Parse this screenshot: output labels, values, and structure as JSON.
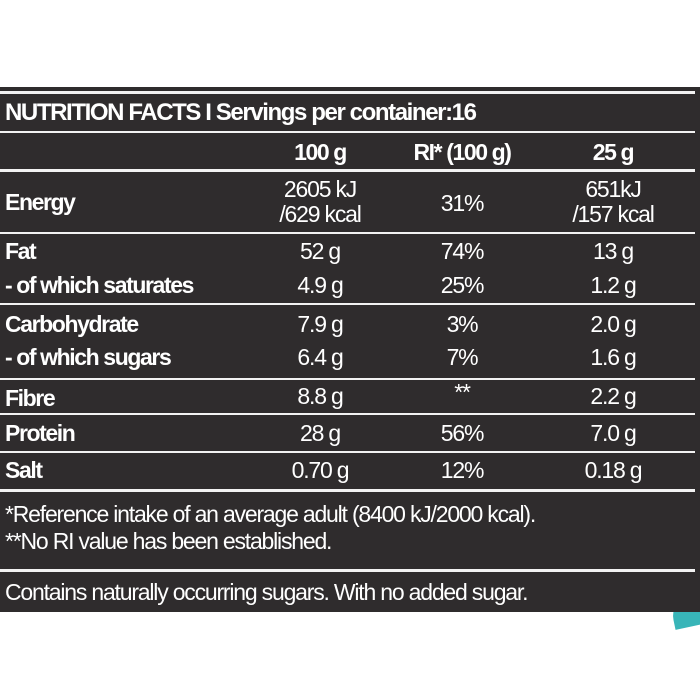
{
  "title": "NUTRITION FACTS I Servings per container:16",
  "columns": [
    "100 g",
    "RI* (100 g)",
    "25 g"
  ],
  "rows": [
    {
      "label": "Energy",
      "v100": [
        "2605 kJ",
        "/629 kcal"
      ],
      "ri": "31%",
      "v25": [
        "651kJ",
        "/157 kcal"
      ]
    },
    {
      "label": "Fat",
      "v100": "52 g",
      "ri": "74%",
      "v25": "13 g"
    },
    {
      "label": "- of which saturates",
      "v100": "4.9 g",
      "ri": "25%",
      "v25": "1.2 g"
    },
    {
      "label": "Carbohydrate",
      "v100": "7.9 g",
      "ri": "3%",
      "v25": "2.0 g"
    },
    {
      "label": "- of which sugars",
      "v100": "6.4 g",
      "ri": "7%",
      "v25": "1.6 g"
    },
    {
      "label": "Fibre",
      "v100": "8.8 g",
      "ri": "**",
      "v25": "2.2 g"
    },
    {
      "label": "Protein",
      "v100": "28 g",
      "ri": "56%",
      "v25": "7.0 g"
    },
    {
      "label": "Salt",
      "v100": "0.70 g",
      "ri": "12%",
      "v25": "0.18 g"
    }
  ],
  "footnotes": [
    "*Reference intake of an average adult (8400 kJ/2000 kcal).",
    "**No RI value has been established."
  ],
  "note": "Contains naturally occurring sugars. With no added sugar.",
  "colors": {
    "background": "#2f2c2d",
    "text": "#ffffff",
    "accent": "#38b5b8"
  }
}
